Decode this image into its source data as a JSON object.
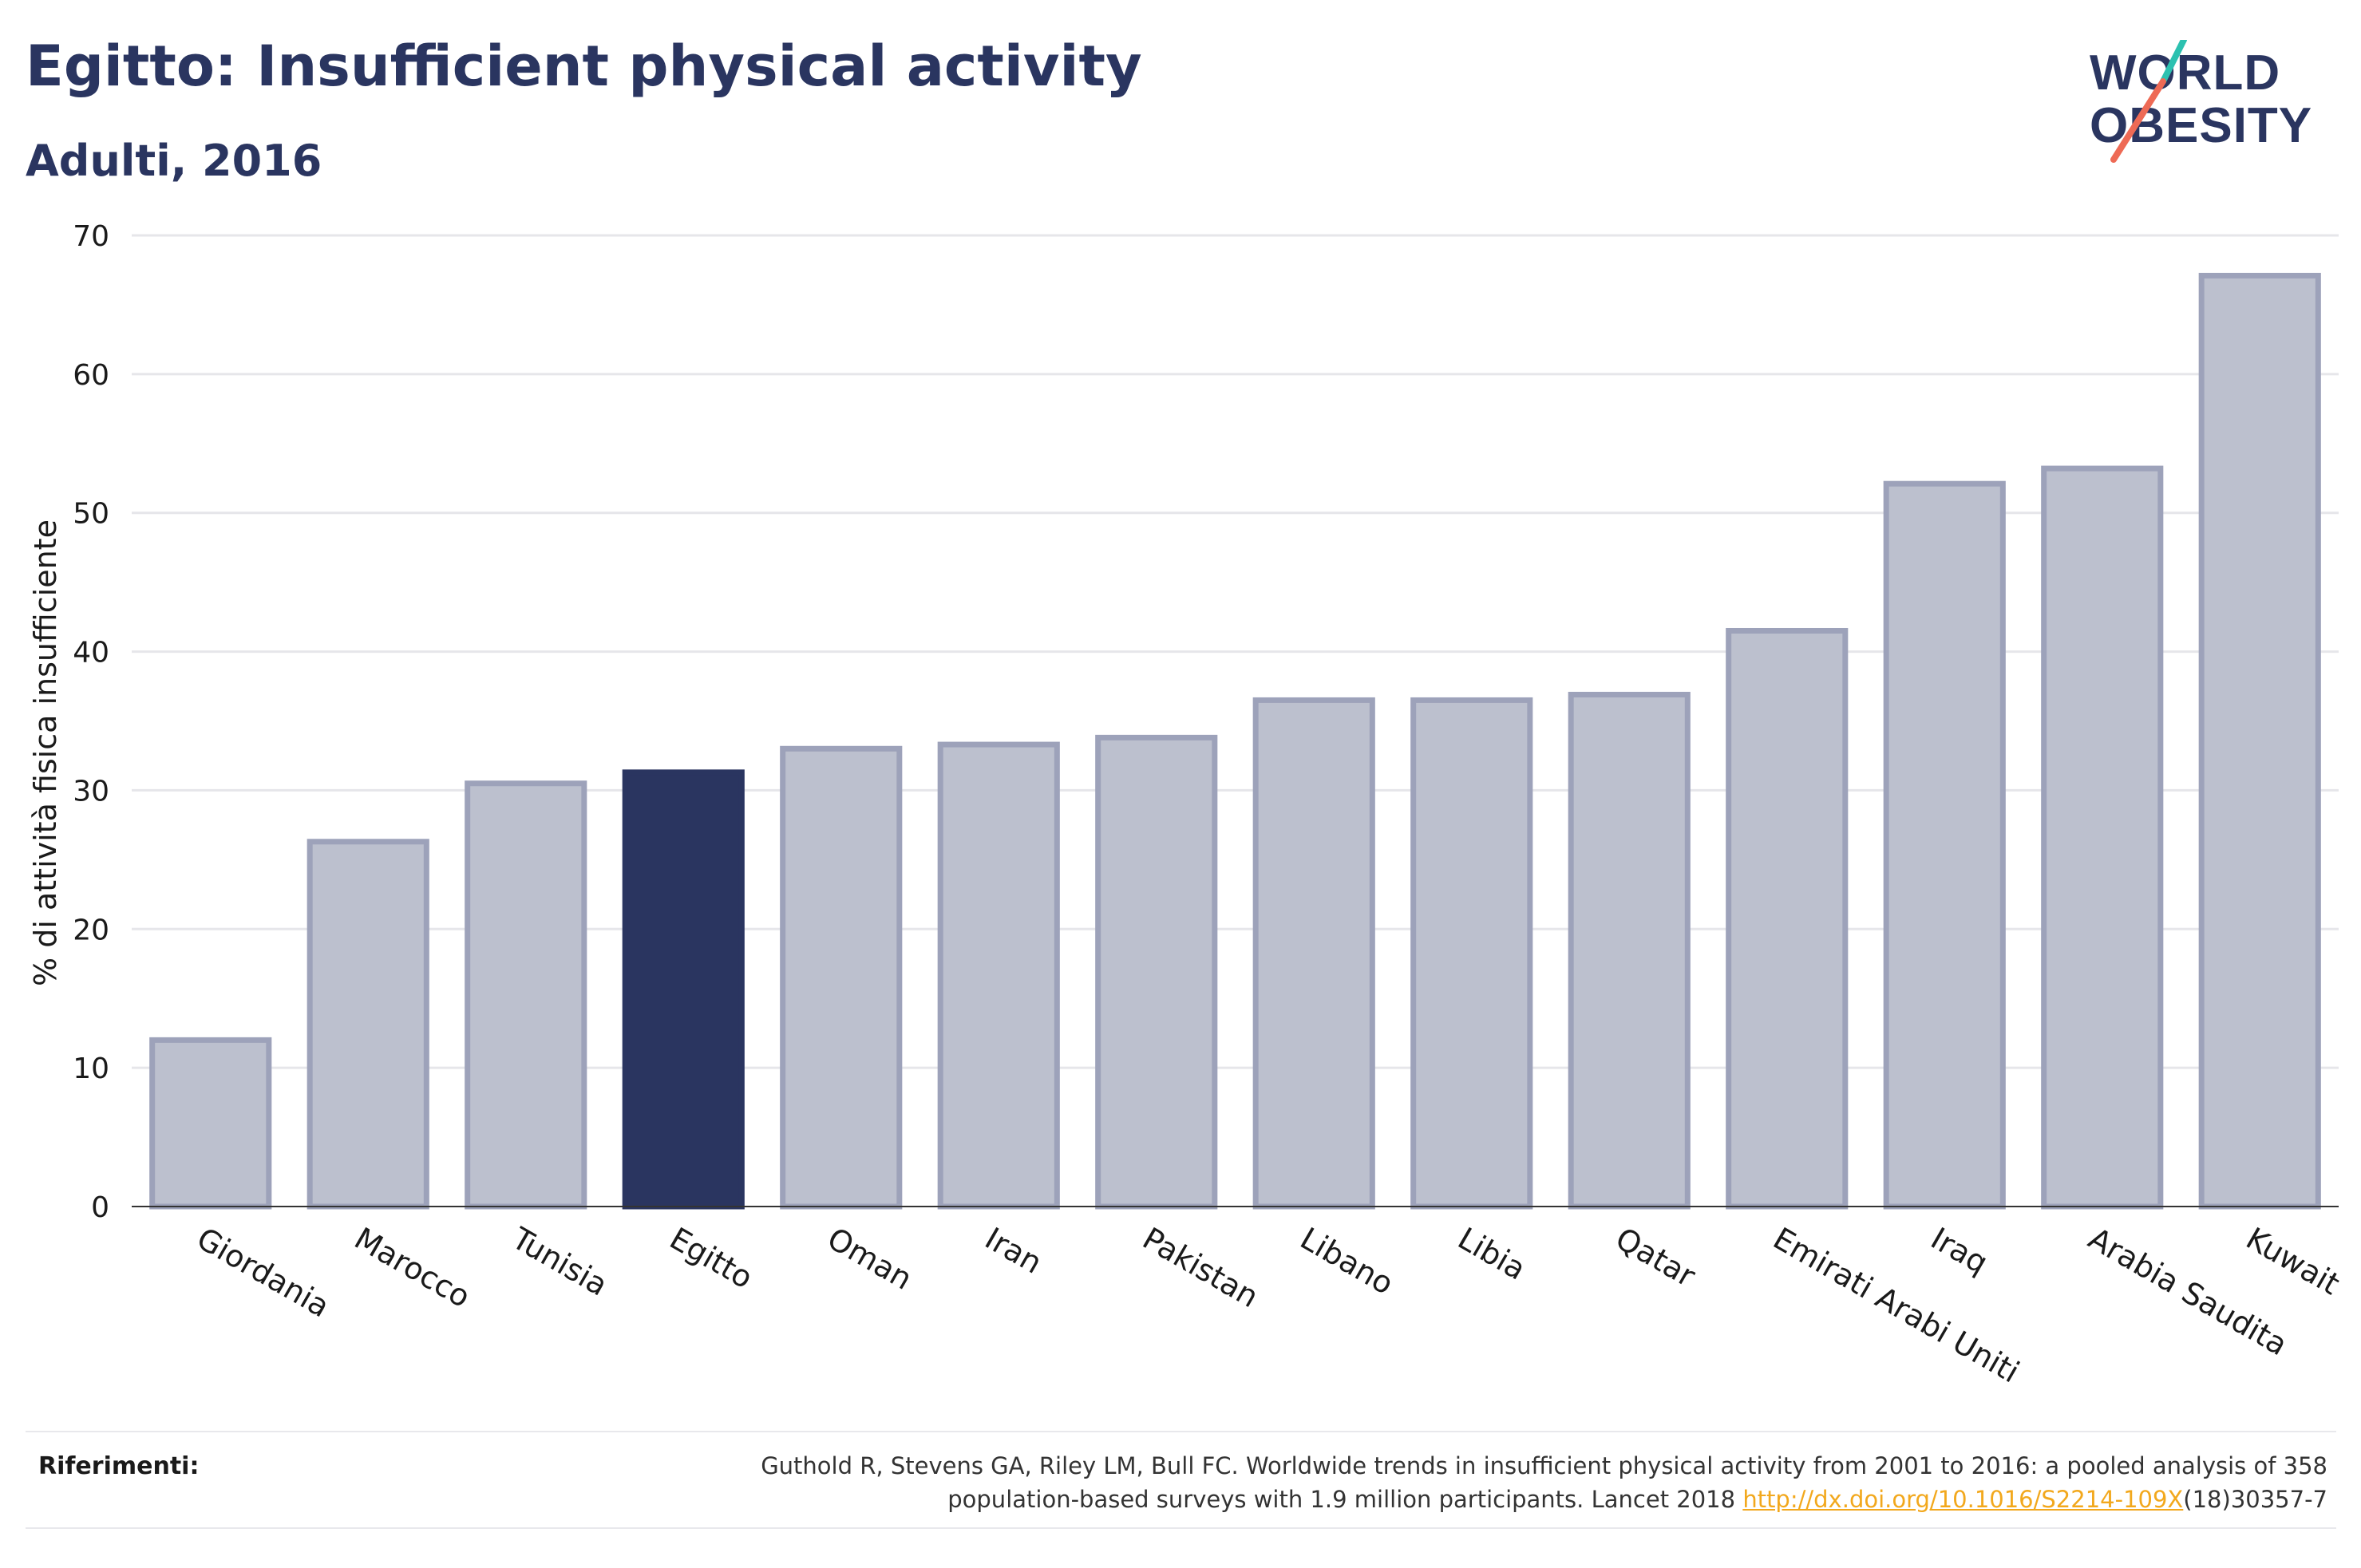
{
  "header": {
    "title": "Egitto: Insufficient physical activity",
    "subtitle": "Adulti, 2016"
  },
  "logo": {
    "line1": "WORLD",
    "line2": "OBESITY"
  },
  "chart_data": {
    "type": "bar",
    "categories": [
      "Giordania",
      "Marocco",
      "Tunisia",
      "Egitto",
      "Oman",
      "Iran",
      "Pakistan",
      "Libano",
      "Libia",
      "Qatar",
      "Emirati Arabi Uniti",
      "Iraq",
      "Arabia Saudita",
      "Kuwait"
    ],
    "values": [
      12.0,
      26.3,
      30.5,
      31.3,
      33.0,
      33.3,
      33.8,
      36.5,
      36.5,
      36.9,
      41.5,
      52.1,
      53.2,
      67.1
    ],
    "highlight": "Egitto",
    "ylabel": "% di attività fisica insufficiente",
    "ylim": [
      0,
      70
    ],
    "yticks": [
      0,
      10,
      20,
      30,
      40,
      50,
      60,
      70
    ],
    "grid": true,
    "colors": {
      "bar": "#bcc0ce",
      "bar_border": "#9da2ba",
      "highlight": "#2a3560",
      "grid": "#e6e6ea",
      "axis": "#333333"
    }
  },
  "footer": {
    "label": "Riferimenti:",
    "reference_line1": "Guthold R, Stevens GA, Riley LM, Bull FC. Worldwide trends in insufficient physical activity from 2001 to 2016: a pooled analysis of 358",
    "reference_line2_prefix": "population-based surveys with 1.9 million participants. Lancet 2018 ",
    "reference_link": "http://dx.doi.org/10.1016/S2214-109X",
    "reference_line2_suffix": "(18)30357-7"
  }
}
